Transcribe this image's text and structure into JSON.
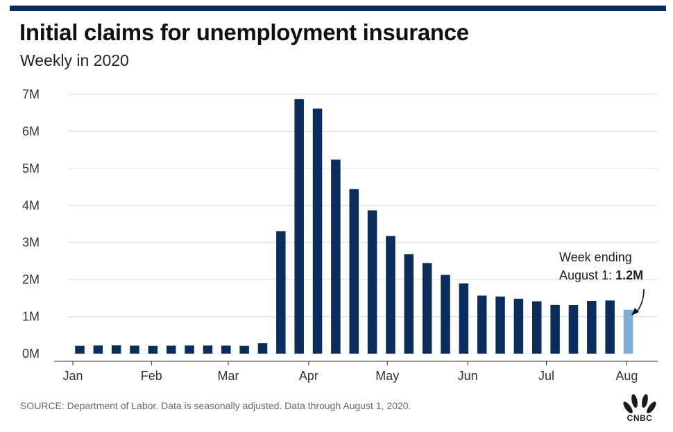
{
  "title": "Initial claims for unemployment insurance",
  "subtitle": "Weekly in 2020",
  "source": "SOURCE: Department of Labor. Data is seasonally adjusted. Data through August 1, 2020.",
  "logo": {
    "text": "CNBC",
    "icon": "cnbc-peacock-logo"
  },
  "colors": {
    "bar": "#0b2d5b",
    "highlight": "#7bafd6",
    "grid": "#dcdcdc",
    "accent": "#0b2d5b"
  },
  "annotation": {
    "line1": "Week ending",
    "line2_prefix": "August 1: ",
    "line2_value": "1.2M"
  },
  "chart_data": {
    "type": "bar",
    "title": "Initial claims for unemployment insurance",
    "subtitle": "Weekly in 2020",
    "ylim": [
      0,
      7000000
    ],
    "y_ticks": [
      {
        "value": 0,
        "label": "0M"
      },
      {
        "value": 1000000,
        "label": "1M"
      },
      {
        "value": 2000000,
        "label": "2M"
      },
      {
        "value": 3000000,
        "label": "3M"
      },
      {
        "value": 4000000,
        "label": "4M"
      },
      {
        "value": 5000000,
        "label": "5M"
      },
      {
        "value": 6000000,
        "label": "6M"
      },
      {
        "value": 7000000,
        "label": "7M"
      }
    ],
    "x_tick_labels": [
      {
        "label": "Jan",
        "index": 0
      },
      {
        "label": "Feb",
        "index": 4.3
      },
      {
        "label": "Mar",
        "index": 8.5
      },
      {
        "label": "Apr",
        "index": 12.9
      },
      {
        "label": "May",
        "index": 17.2
      },
      {
        "label": "Jun",
        "index": 21.6
      },
      {
        "label": "Jul",
        "index": 25.9
      },
      {
        "label": "Aug",
        "index": 30.3
      }
    ],
    "grid": true,
    "values": [
      212000,
      220000,
      223000,
      216000,
      210000,
      215000,
      220000,
      219000,
      217000,
      211000,
      282000,
      3307000,
      6867000,
      6615000,
      5237000,
      4442000,
      3867000,
      3176000,
      2687000,
      2446000,
      2126000,
      1897000,
      1566000,
      1542000,
      1482000,
      1413000,
      1314000,
      1310000,
      1422000,
      1435000,
      1186000
    ],
    "highlight_index": 30
  }
}
